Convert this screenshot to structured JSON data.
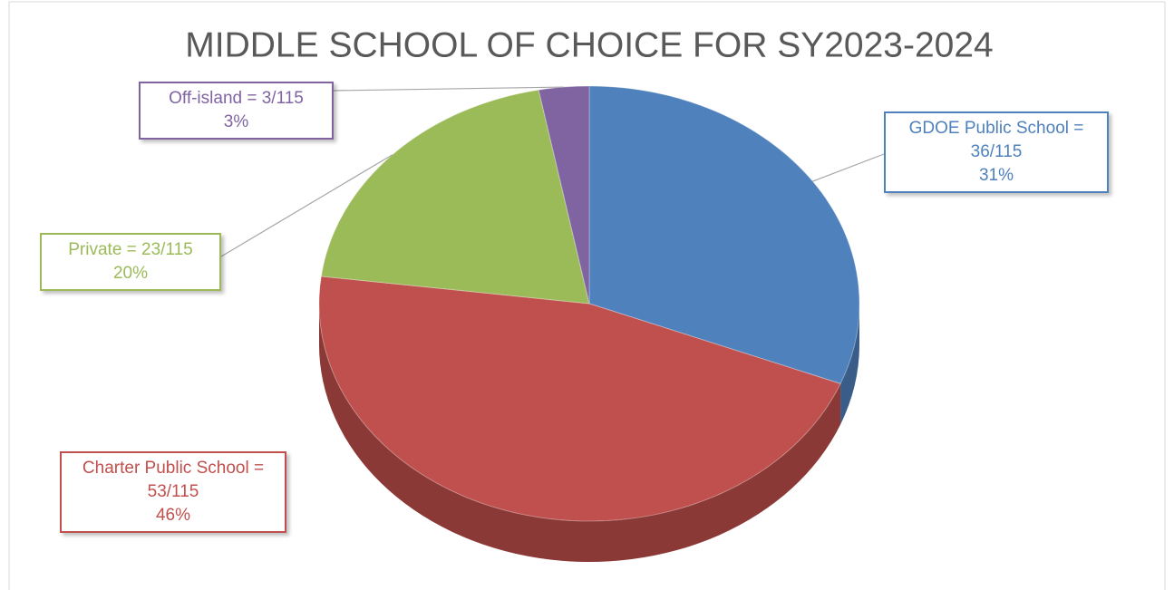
{
  "chart_data": {
    "type": "pie",
    "title": "MIDDLE SCHOOL OF CHOICE FOR SY2023-2024",
    "categories": [
      "GDOE Public School = 36/115",
      "Charter Public School = 53/115",
      "Private = 23/115",
      "Off-island = 3/115"
    ],
    "values": [
      31,
      46,
      20,
      3
    ],
    "value_labels": [
      "31%",
      "46%",
      "20%",
      "3%"
    ],
    "colors": [
      "#4f81bd",
      "#c0504d",
      "#9bbb59",
      "#8064a2"
    ]
  }
}
